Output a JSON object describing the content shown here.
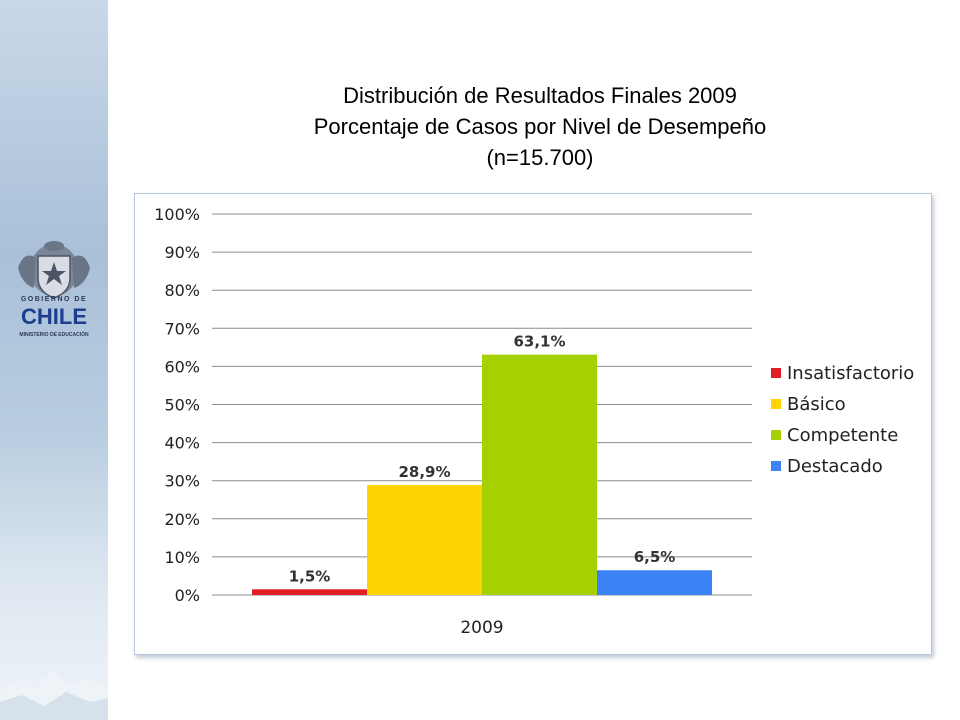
{
  "slide": {
    "title_line1": "Distribución de Resultados Finales 2009",
    "title_line2": "Porcentaje de Casos por Nivel de Desempeño",
    "title_line3": "(n=15.700)"
  },
  "logo": {
    "line1": "GOBIERNO DE",
    "line2": "CHILE",
    "line3": "MINISTERIO DE EDUCACIÓN"
  },
  "chart_data": {
    "type": "bar",
    "categories": [
      "2009"
    ],
    "xlabel": "2009",
    "ylim": [
      0,
      100
    ],
    "y_ticks": [
      "0%",
      "10%",
      "20%",
      "30%",
      "40%",
      "50%",
      "60%",
      "70%",
      "80%",
      "90%",
      "100%"
    ],
    "grid": true,
    "legend_position": "right",
    "series": [
      {
        "name": "Insatisfactorio",
        "values": [
          1.5
        ],
        "label": "1,5%",
        "color": "#e31e24"
      },
      {
        "name": "Básico",
        "values": [
          28.9
        ],
        "label": "28,9%",
        "color": "#ffd400"
      },
      {
        "name": "Competente",
        "values": [
          63.1
        ],
        "label": "63,1%",
        "color": "#a6d100"
      },
      {
        "name": "Destacado",
        "values": [
          6.5
        ],
        "label": "6,5%",
        "color": "#3b82f6"
      }
    ]
  }
}
